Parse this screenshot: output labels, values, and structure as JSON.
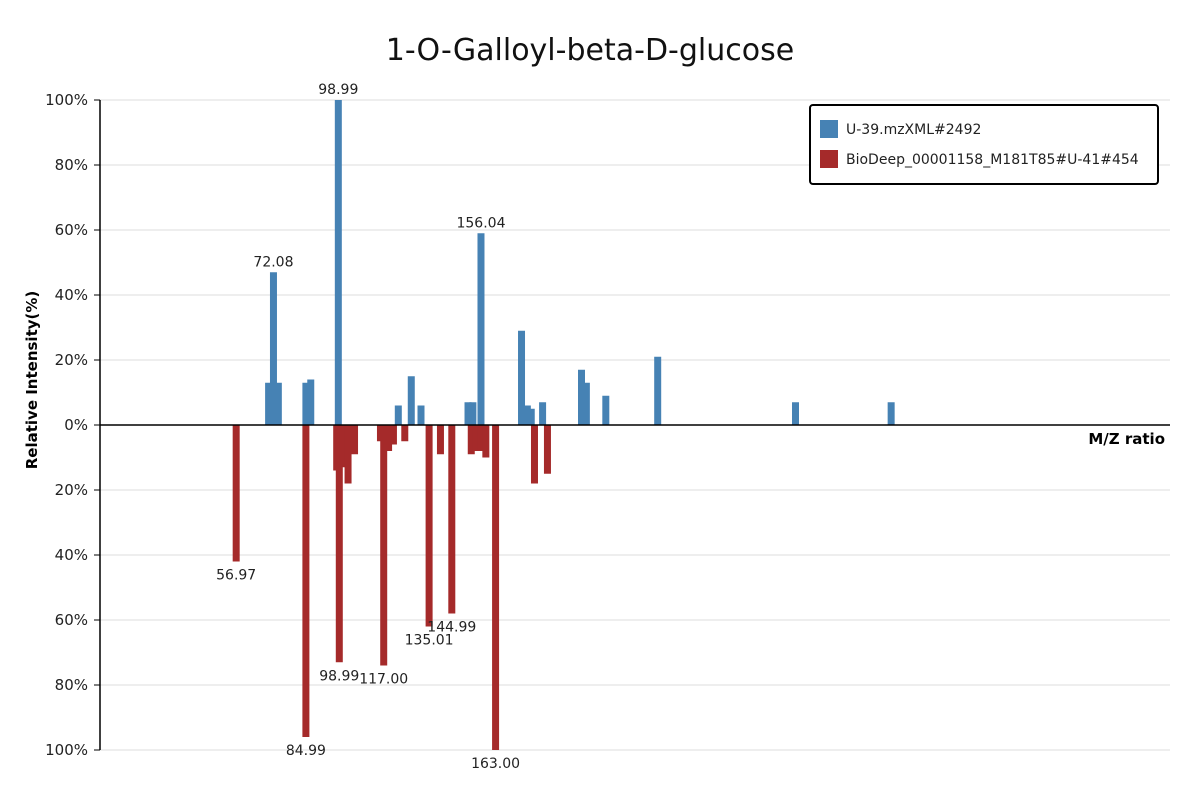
{
  "chart_data": {
    "type": "bar",
    "title": "1-O-Galloyl-beta-D-glucose",
    "xlabel": "M/Z ratio",
    "ylabel": "Relative Intensity(%)",
    "ylim": [
      -100,
      100
    ],
    "xlim": [
      0,
      330
    ],
    "y_ticks": [
      "100%",
      "80%",
      "60%",
      "40%",
      "20%",
      "0%",
      "20%",
      "40%",
      "60%",
      "80%",
      "100%"
    ],
    "grid": true,
    "legend_position": "top-right",
    "series": [
      {
        "name": "U-39.mzXML#2492",
        "color": "#4682b4",
        "direction": "up",
        "peaks": [
          {
            "mz": 52.0,
            "intensity": 13,
            "label": ""
          },
          {
            "mz": 53.5,
            "intensity": 47,
            "label": "72.08"
          },
          {
            "mz": 55.0,
            "intensity": 13,
            "label": ""
          },
          {
            "mz": 63.5,
            "intensity": 13,
            "label": ""
          },
          {
            "mz": 65.0,
            "intensity": 14,
            "label": ""
          },
          {
            "mz": 73.5,
            "intensity": 100,
            "label": "98.99"
          },
          {
            "mz": 92.0,
            "intensity": 6,
            "label": ""
          },
          {
            "mz": 96.0,
            "intensity": 15,
            "label": ""
          },
          {
            "mz": 99.0,
            "intensity": 6,
            "label": ""
          },
          {
            "mz": 113.5,
            "intensity": 7,
            "label": ""
          },
          {
            "mz": 115.0,
            "intensity": 7,
            "label": ""
          },
          {
            "mz": 117.5,
            "intensity": 59,
            "label": "156.04"
          },
          {
            "mz": 130.0,
            "intensity": 29,
            "label": ""
          },
          {
            "mz": 131.8,
            "intensity": 6,
            "label": ""
          },
          {
            "mz": 133.0,
            "intensity": 5,
            "label": ""
          },
          {
            "mz": 136.5,
            "intensity": 7,
            "label": ""
          },
          {
            "mz": 148.5,
            "intensity": 17,
            "label": ""
          },
          {
            "mz": 150.0,
            "intensity": 13,
            "label": ""
          },
          {
            "mz": 156.0,
            "intensity": 9,
            "label": ""
          },
          {
            "mz": 172.0,
            "intensity": 21,
            "label": ""
          },
          {
            "mz": 214.5,
            "intensity": 7,
            "label": ""
          },
          {
            "mz": 244.0,
            "intensity": 7,
            "label": ""
          }
        ]
      },
      {
        "name": "BioDeep_00001158_M181T85#U-41#454",
        "color": "#a52a2a",
        "direction": "down",
        "peaks": [
          {
            "mz": 42.0,
            "intensity": 42,
            "label": "56.97"
          },
          {
            "mz": 63.5,
            "intensity": 96,
            "label": "84.99"
          },
          {
            "mz": 73.0,
            "intensity": 14,
            "label": ""
          },
          {
            "mz": 73.8,
            "intensity": 73,
            "label": "98.99"
          },
          {
            "mz": 75.0,
            "intensity": 13,
            "label": ""
          },
          {
            "mz": 76.5,
            "intensity": 18,
            "label": ""
          },
          {
            "mz": 78.5,
            "intensity": 9,
            "label": ""
          },
          {
            "mz": 86.5,
            "intensity": 5,
            "label": ""
          },
          {
            "mz": 87.5,
            "intensity": 74,
            "label": "117.00"
          },
          {
            "mz": 89.0,
            "intensity": 8,
            "label": ""
          },
          {
            "mz": 90.5,
            "intensity": 6,
            "label": ""
          },
          {
            "mz": 94.0,
            "intensity": 5,
            "label": ""
          },
          {
            "mz": 101.5,
            "intensity": 62,
            "label": "135.01"
          },
          {
            "mz": 105.0,
            "intensity": 9,
            "label": ""
          },
          {
            "mz": 108.5,
            "intensity": 58,
            "label": "144.99"
          },
          {
            "mz": 114.5,
            "intensity": 9,
            "label": ""
          },
          {
            "mz": 116.0,
            "intensity": 8,
            "label": ""
          },
          {
            "mz": 117.5,
            "intensity": 8,
            "label": ""
          },
          {
            "mz": 119.0,
            "intensity": 10,
            "label": ""
          },
          {
            "mz": 122.0,
            "intensity": 100,
            "label": "163.00"
          },
          {
            "mz": 134.0,
            "intensity": 18,
            "label": ""
          },
          {
            "mz": 138.0,
            "intensity": 15,
            "label": ""
          }
        ]
      }
    ]
  }
}
